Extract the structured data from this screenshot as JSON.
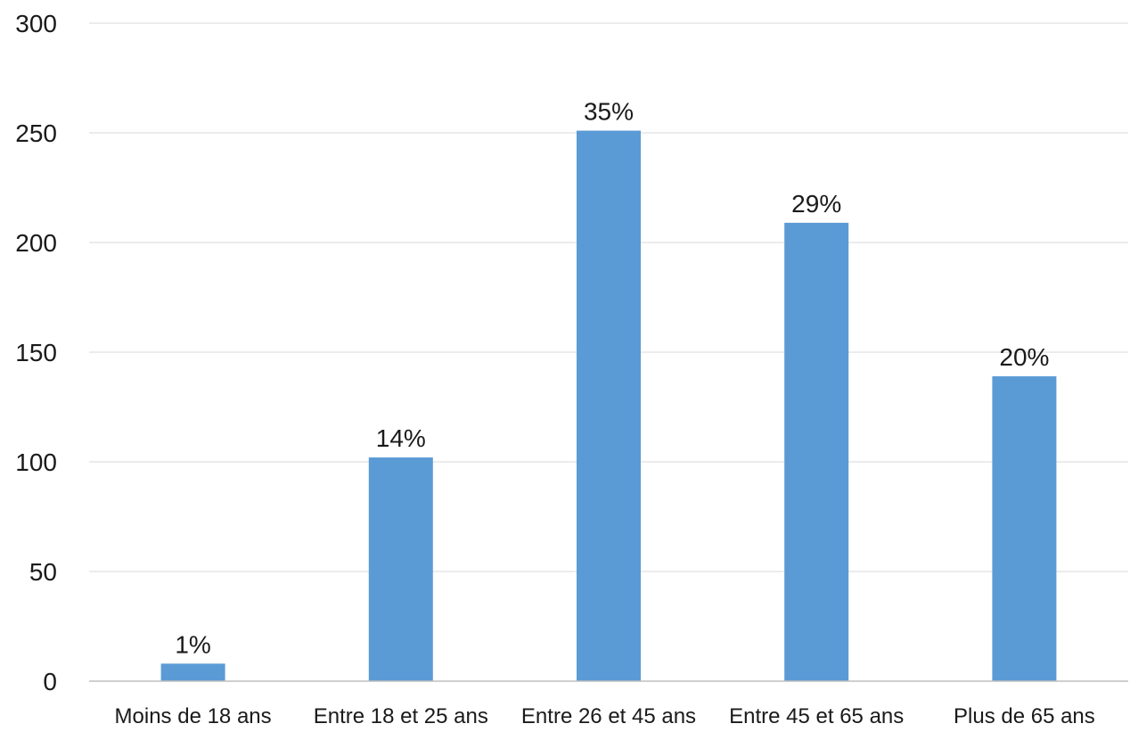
{
  "chart_data": {
    "type": "bar",
    "categories": [
      "Moins de 18 ans",
      "Entre 18 et 25 ans",
      "Entre 26 et 45 ans",
      "Entre 45 et 65 ans",
      "Plus de 65 ans"
    ],
    "values": [
      8,
      102,
      251,
      209,
      139
    ],
    "data_labels": [
      "1%",
      "14%",
      "35%",
      "29%",
      "20%"
    ],
    "title": "",
    "xlabel": "",
    "ylabel": "",
    "ylim": [
      0,
      300
    ],
    "yticks": [
      "0",
      "50",
      "100",
      "150",
      "200",
      "250",
      "300"
    ],
    "grid": true,
    "legend": "none",
    "bar_color": "#5b9bd5"
  }
}
